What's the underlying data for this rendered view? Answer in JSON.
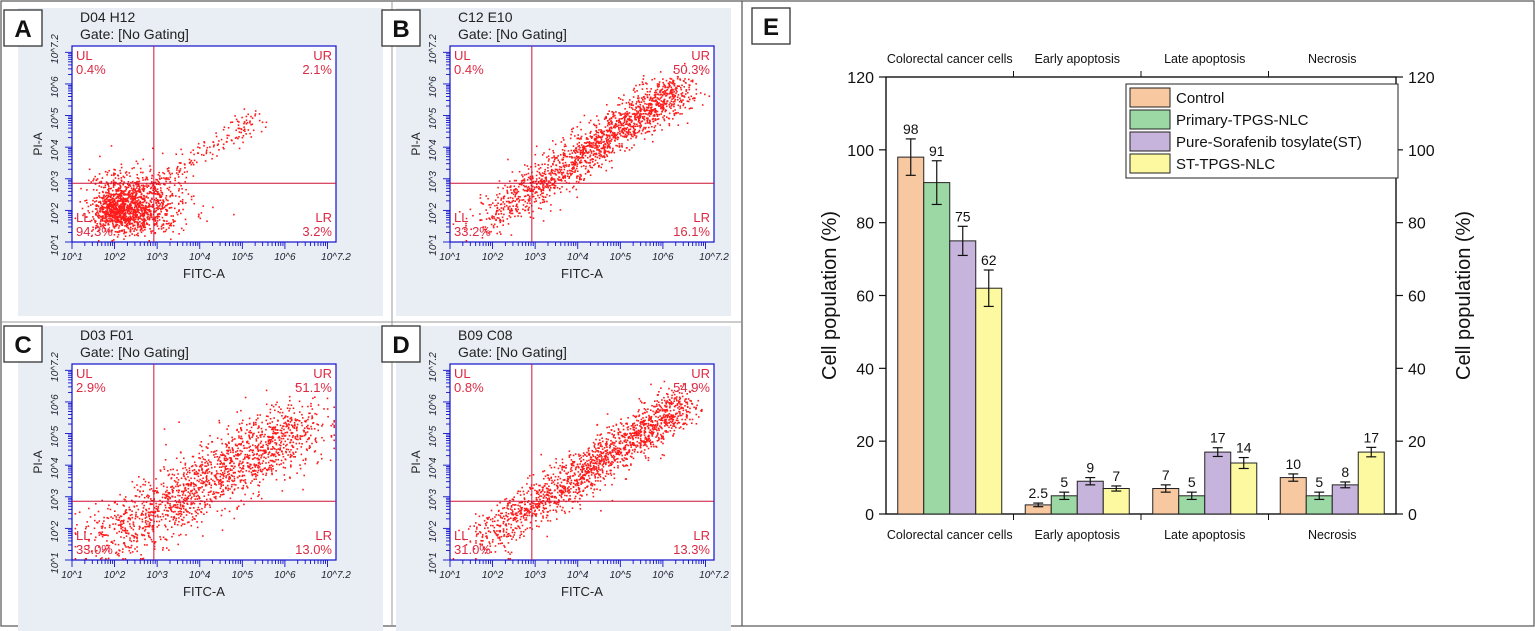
{
  "panels": [
    {
      "letter": "A",
      "sample": "D04 H12",
      "gate": "Gate: [No Gating]",
      "ul": "UL",
      "ul_val": "0.4%",
      "ur": "UR",
      "ur_val": "2.1%",
      "ll": "LL",
      "ll_val": "94.3%",
      "lr": "LR",
      "lr_val": "3.2%",
      "density": "necrosis-light"
    },
    {
      "letter": "B",
      "sample": "C12 E10",
      "gate": "Gate: [No Gating]",
      "ul": "UL",
      "ul_val": "0.4%",
      "ur": "UR",
      "ur_val": "50.3%",
      "ll": "LL",
      "ll_val": "33.2%",
      "lr": "LR",
      "lr_val": "16.1%",
      "density": "diagonal-dense"
    },
    {
      "letter": "C",
      "sample": "D03 F01",
      "gate": "Gate: [No Gating]",
      "ul": "UL",
      "ul_val": "2.9%",
      "ur": "UR",
      "ur_val": "51.1%",
      "ll": "LL",
      "ll_val": "33.0%",
      "lr": "LR",
      "lr_val": "13.0%",
      "density": "wide-dense"
    },
    {
      "letter": "D",
      "sample": "B09 C08",
      "gate": "Gate: [No Gating]",
      "ul": "UL",
      "ul_val": "0.8%",
      "ur": "UR",
      "ur_val": "54.9%",
      "ll": "LL",
      "ll_val": "31.0%",
      "lr": "LR",
      "lr_val": "13.3%",
      "density": "diagonal-dense"
    }
  ],
  "flow_axes": {
    "xlabel": "FITC-A",
    "ylabel": "PI-A",
    "x_ticks": [
      "10^1",
      "10^2",
      "10^3",
      "10^4",
      "10^5",
      "10^6",
      "10^7.2"
    ],
    "y_ticks": [
      "10^1",
      "10^2",
      "10^3",
      "10^4",
      "10^5",
      "10^6",
      "10^7.2"
    ]
  },
  "colors": {
    "dots": "#ff1a1a",
    "panel_bg": "#e8eef4",
    "axis_blue": "#1010cc",
    "quad_line": "#cc1133",
    "quad_text": "#dd2a44",
    "control": "#f8c8a0",
    "primary": "#9bd8a4",
    "pure": "#c6b4dc",
    "st": "#fcf9a0"
  },
  "chart_data": {
    "type": "bar",
    "panel_label": "E",
    "categories": [
      "Colorectal cancer cells",
      "Early apoptosis",
      "Late apoptosis",
      "Necrosis"
    ],
    "top_labels": [
      "Colorectal cancer cells",
      "Early apoptosis",
      "Late apoptosis",
      "Necrosis"
    ],
    "series": [
      {
        "name": "Control",
        "color": "#f8c8a0",
        "values": [
          98,
          2.5,
          7,
          10
        ],
        "errors": [
          5,
          0.5,
          1,
          1
        ],
        "labels": [
          "98",
          "2.5",
          "7",
          "10"
        ]
      },
      {
        "name": "Primary-TPGS-NLC",
        "color": "#9bd8a4",
        "values": [
          91,
          5,
          5,
          5
        ],
        "errors": [
          6,
          1,
          1,
          1
        ],
        "labels": [
          "91",
          "5",
          "5",
          "5"
        ]
      },
      {
        "name": "Pure-Sorafenib tosylate(ST)",
        "color": "#c6b4dc",
        "values": [
          75,
          9,
          17,
          8
        ],
        "errors": [
          4,
          1,
          1.2,
          0.8
        ],
        "labels": [
          "75",
          "9",
          "17",
          "8"
        ]
      },
      {
        "name": "ST-TPGS-NLC",
        "color": "#fcf9a0",
        "values": [
          62,
          7,
          14,
          17
        ],
        "errors": [
          5,
          0.7,
          1.5,
          1.3
        ],
        "labels": [
          "62",
          "7",
          "14",
          "17"
        ]
      }
    ],
    "ylabel": "Cell population (%)",
    "ylabel_right": "Cell population (%)",
    "ylim": [
      0,
      120
    ],
    "yticks": [
      0,
      20,
      40,
      60,
      80,
      100,
      120
    ],
    "legend": "top-right",
    "grid": false
  }
}
